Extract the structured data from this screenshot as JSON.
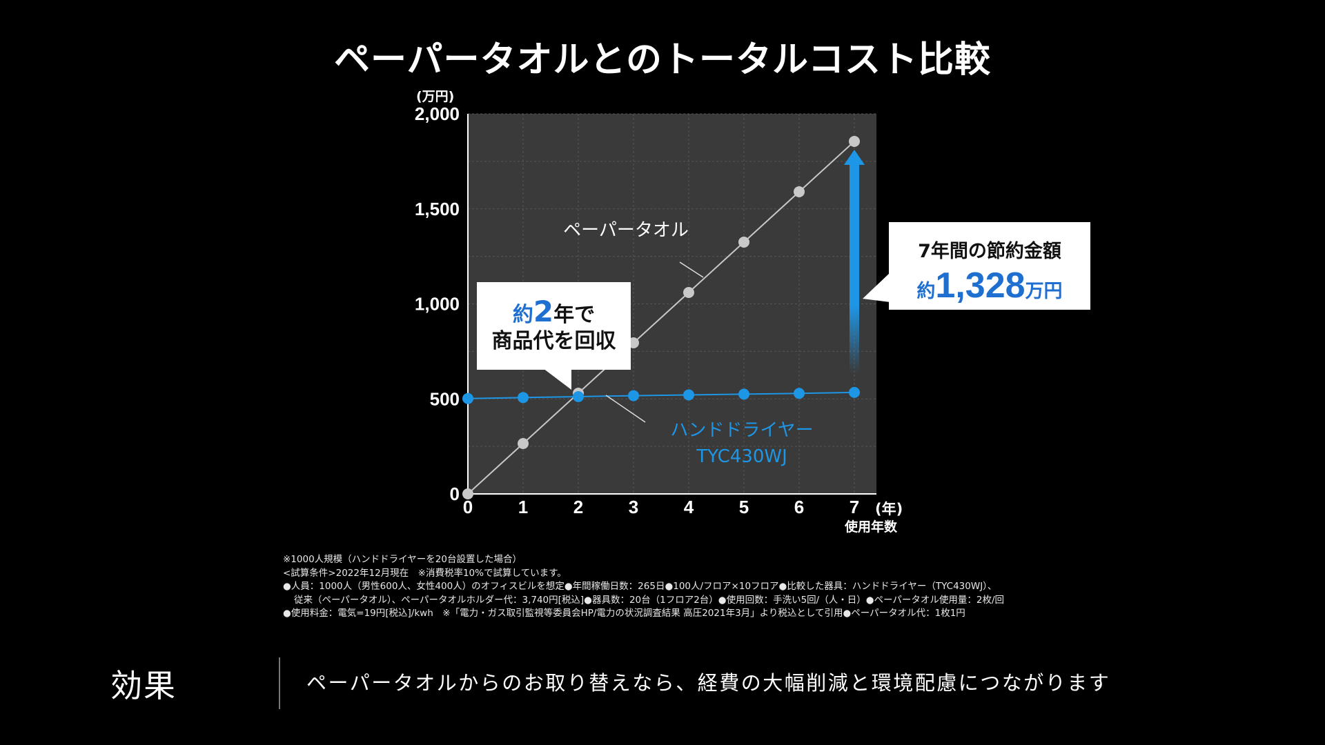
{
  "title": "ペーパータオルとのトータルコスト比較",
  "chart_data": {
    "type": "line",
    "y_unit": "(万円)",
    "x_unit": "(年)",
    "xlabel": "使用年数",
    "x": [
      0,
      1,
      2,
      3,
      4,
      5,
      6,
      7
    ],
    "x_tick_labels": [
      "0",
      "1",
      "2",
      "3",
      "4",
      "5",
      "6",
      "7"
    ],
    "y_ticks": [
      0,
      500,
      1000,
      1500,
      2000
    ],
    "y_tick_labels": [
      "0",
      "500",
      "1,000",
      "1,500",
      "2,000"
    ],
    "ylim": [
      0,
      2000
    ],
    "xlim": [
      0,
      7.4
    ],
    "grid": true,
    "series": [
      {
        "name": "ペーパータオル",
        "color": "#c8c8c8",
        "values": [
          0,
          265,
          530,
          795,
          1060,
          1325,
          1590,
          1855
        ]
      },
      {
        "name": "ハンドドライヤーTYC430WJ",
        "color": "#1e96e6",
        "values": [
          502,
          507,
          512,
          517,
          521,
          525,
          529,
          534
        ]
      }
    ],
    "series_labels": [
      {
        "lines": [
          "ペーパータオル"
        ],
        "color": "#ffffff"
      },
      {
        "lines": [
          "ハンドドライヤー",
          "TYC430WJ"
        ],
        "color": "#1e96e6"
      }
    ],
    "annotations": {
      "payback": {
        "prefix": "約",
        "number": "2",
        "suffix": "年で",
        "line2": "商品代を回収"
      },
      "savings": {
        "line1": "7年間の節約金額",
        "prefix": "約",
        "number": "1,328",
        "unit": "万円"
      }
    }
  },
  "notes": [
    "※1000人規模（ハンドドライヤーを20台設置した場合）",
    "<試算条件>2022年12月現在　※消費税率10%で試算しています。",
    "●人員：1000人（男性600人、女性400人）のオフィスビルを想定●年間稼働日数：265日●100人/フロア×10フロア●比較した器具：ハンドドライヤー（TYC430WJ）、",
    "従来（ペーパータオル）、ペーパータオルホルダー代：3,740円[税込]●器具数：20台（1フロア2台）●使用回数：手洗い5回/（人・日）●ペーパータオル使用量：2枚/回",
    "●使用料金：電気=19円[税込]/kwh　※「電力・ガス取引監視等委員会HP/電力の状況調査結果 高圧2021年3月」より税込として引用●ペーパータオル代：1枚1円"
  ],
  "effect": {
    "label": "効果",
    "text": "ペーパータオルからのお取り替えなら、経費の大幅削減と環境配慮につながります"
  }
}
